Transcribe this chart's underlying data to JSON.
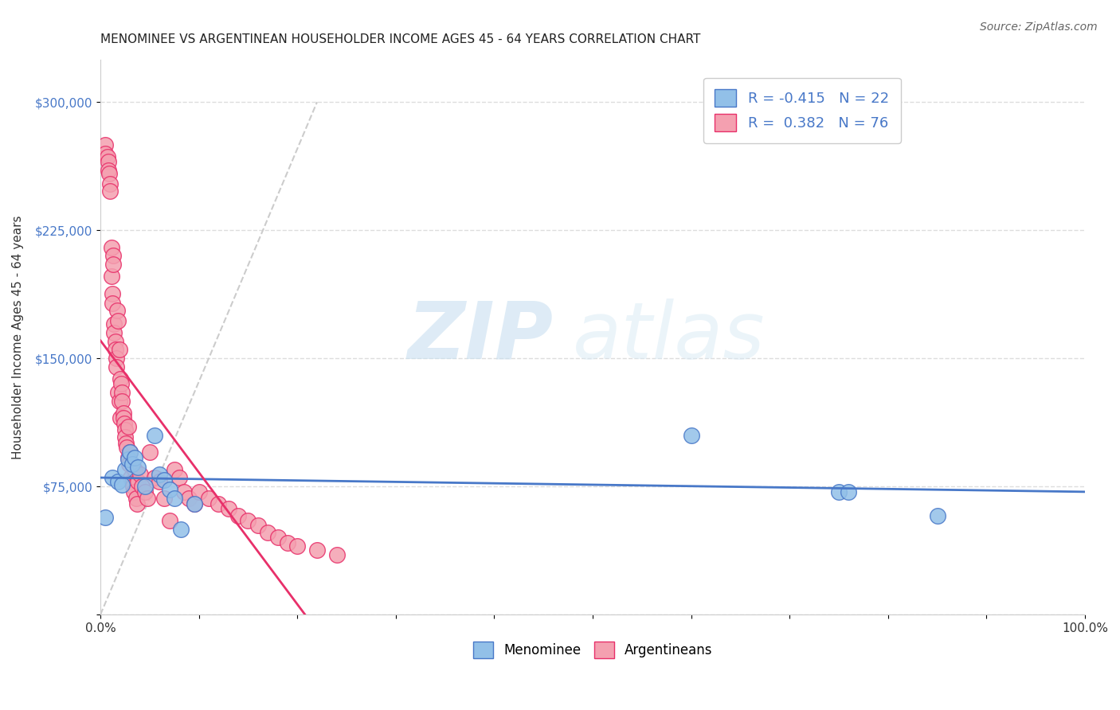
{
  "title": "MENOMINEE VS ARGENTINEAN HOUSEHOLDER INCOME AGES 45 - 64 YEARS CORRELATION CHART",
  "source": "Source: ZipAtlas.com",
  "xlabel": "",
  "ylabel": "Householder Income Ages 45 - 64 years",
  "xlim": [
    0,
    1.0
  ],
  "ylim": [
    0,
    325000
  ],
  "xticks": [
    0.0,
    0.1,
    0.2,
    0.3,
    0.4,
    0.5,
    0.6,
    0.7,
    0.8,
    0.9,
    1.0
  ],
  "xticklabels": [
    "0.0%",
    "",
    "",
    "",
    "",
    "",
    "",
    "",
    "",
    "",
    "100.0%"
  ],
  "yticks": [
    0,
    75000,
    150000,
    225000,
    300000
  ],
  "yticklabels": [
    "",
    "$75,000",
    "$150,000",
    "$225,000",
    "$300,000"
  ],
  "legend_R_menominee": "-0.415",
  "legend_N_menominee": "22",
  "legend_R_argentinean": "0.382",
  "legend_N_argentinean": "76",
  "menominee_color": "#92c0e8",
  "argentinean_color": "#f4a0b0",
  "menominee_line_color": "#4878c8",
  "argentinean_line_color": "#e8306a",
  "diagonal_color": "#cccccc",
  "watermark_zip": "ZIP",
  "watermark_atlas": "atlas",
  "background_color": "#ffffff",
  "grid_color": "#dddddd",
  "title_fontsize": 11,
  "menominee_scatter_x": [
    0.005,
    0.012,
    0.018,
    0.022,
    0.025,
    0.028,
    0.03,
    0.032,
    0.035,
    0.038,
    0.045,
    0.055,
    0.06,
    0.065,
    0.07,
    0.075,
    0.082,
    0.095,
    0.6,
    0.75,
    0.76,
    0.85
  ],
  "menominee_scatter_y": [
    57000,
    80000,
    78000,
    76000,
    85000,
    91000,
    95000,
    88000,
    92000,
    86000,
    75000,
    105000,
    82000,
    79000,
    73000,
    68000,
    50000,
    65000,
    105000,
    72000,
    72000,
    58000
  ],
  "argentinean_scatter_x": [
    0.005,
    0.005,
    0.007,
    0.008,
    0.008,
    0.009,
    0.01,
    0.01,
    0.011,
    0.011,
    0.012,
    0.012,
    0.013,
    0.013,
    0.014,
    0.014,
    0.015,
    0.015,
    0.016,
    0.016,
    0.017,
    0.018,
    0.018,
    0.019,
    0.019,
    0.02,
    0.02,
    0.021,
    0.022,
    0.022,
    0.023,
    0.023,
    0.024,
    0.025,
    0.025,
    0.026,
    0.027,
    0.028,
    0.028,
    0.029,
    0.03,
    0.031,
    0.032,
    0.033,
    0.034,
    0.035,
    0.036,
    0.037,
    0.038,
    0.04,
    0.042,
    0.045,
    0.048,
    0.05,
    0.055,
    0.06,
    0.065,
    0.07,
    0.075,
    0.08,
    0.085,
    0.09,
    0.095,
    0.1,
    0.11,
    0.12,
    0.13,
    0.14,
    0.15,
    0.16,
    0.17,
    0.18,
    0.19,
    0.2,
    0.22,
    0.24
  ],
  "argentinean_scatter_y": [
    275000,
    270000,
    268000,
    265000,
    260000,
    258000,
    252000,
    248000,
    215000,
    198000,
    188000,
    182000,
    210000,
    205000,
    170000,
    165000,
    160000,
    155000,
    150000,
    145000,
    178000,
    172000,
    130000,
    125000,
    155000,
    115000,
    138000,
    135000,
    130000,
    125000,
    118000,
    115000,
    112000,
    108000,
    104000,
    100000,
    98000,
    110000,
    92000,
    88000,
    95000,
    80000,
    78000,
    75000,
    72000,
    85000,
    68000,
    65000,
    78000,
    82000,
    75000,
    72000,
    68000,
    95000,
    80000,
    78000,
    68000,
    55000,
    85000,
    80000,
    72000,
    68000,
    65000,
    72000,
    68000,
    65000,
    62000,
    58000,
    55000,
    52000,
    48000,
    45000,
    42000,
    40000,
    38000,
    35000
  ]
}
